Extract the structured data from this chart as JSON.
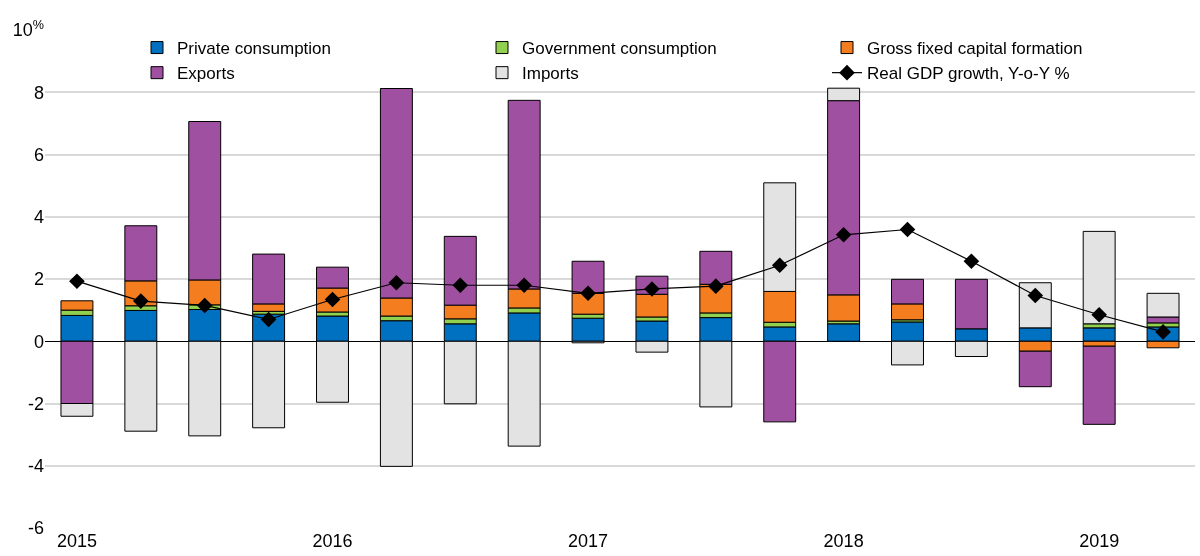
{
  "chart_data": {
    "type": "bar",
    "stacked": true,
    "categories": [
      "2015",
      null,
      null,
      null,
      "2016",
      null,
      null,
      null,
      "2017",
      null,
      null,
      null,
      "2018",
      null,
      null,
      null,
      "2019",
      null
    ],
    "series": [
      {
        "name": "Private consumption",
        "color": "#0070c0",
        "values": [
          0.83,
          0.99,
          1.02,
          0.87,
          0.81,
          0.66,
          0.56,
          0.91,
          0.74,
          0.65,
          0.76,
          0.46,
          0.56,
          0.62,
          0.4,
          0.43,
          0.43,
          0.46
        ]
      },
      {
        "name": "Government consumption",
        "color": "#92d050",
        "values": [
          0.17,
          0.15,
          0.15,
          0.09,
          0.13,
          0.15,
          0.16,
          0.16,
          0.13,
          0.13,
          0.15,
          0.15,
          0.09,
          0.07,
          null,
          null,
          0.13,
          0.13
        ]
      },
      {
        "name": "Gross fixed capital formation",
        "color": "#f47d20",
        "values": [
          0.3,
          0.8,
          0.8,
          0.24,
          0.77,
          0.58,
          0.44,
          0.61,
          0.67,
          0.73,
          0.92,
          0.99,
          0.84,
          0.51,
          null,
          -0.32,
          -0.16,
          -0.21
        ]
      },
      {
        "name": "Exports",
        "color": "#a050a0",
        "values": [
          -2.0,
          1.77,
          5.09,
          1.6,
          0.67,
          6.73,
          2.21,
          6.06,
          1.03,
          0.58,
          1.06,
          -2.59,
          6.24,
          0.79,
          1.59,
          -1.14,
          -2.51,
          0.19
        ]
      },
      {
        "name": "Imports",
        "color": "#e3e3e3",
        "values": [
          -0.41,
          -2.89,
          -3.04,
          -2.78,
          -1.96,
          -4.02,
          -2.01,
          -3.37,
          -0.05,
          -0.35,
          -2.11,
          3.49,
          0.4,
          -0.76,
          -0.49,
          1.45,
          2.97,
          0.76
        ]
      },
      {
        "name": "Real GDP growth, Y-o-Y %",
        "type": "line",
        "color": "#000000",
        "marker": "diamond",
        "values": [
          1.93,
          1.29,
          1.15,
          0.7,
          1.34,
          1.88,
          1.8,
          1.8,
          1.54,
          1.68,
          1.77,
          2.44,
          3.42,
          3.59,
          2.57,
          1.47,
          0.85,
          0.3
        ]
      }
    ],
    "ylim": [
      -6,
      10
    ],
    "yticks": [
      -6,
      -4,
      -2,
      0,
      2,
      4,
      6,
      8,
      {
        "value": 10,
        "label": "10$^{%}$"
      }
    ],
    "grid": "y",
    "legend": "top"
  }
}
